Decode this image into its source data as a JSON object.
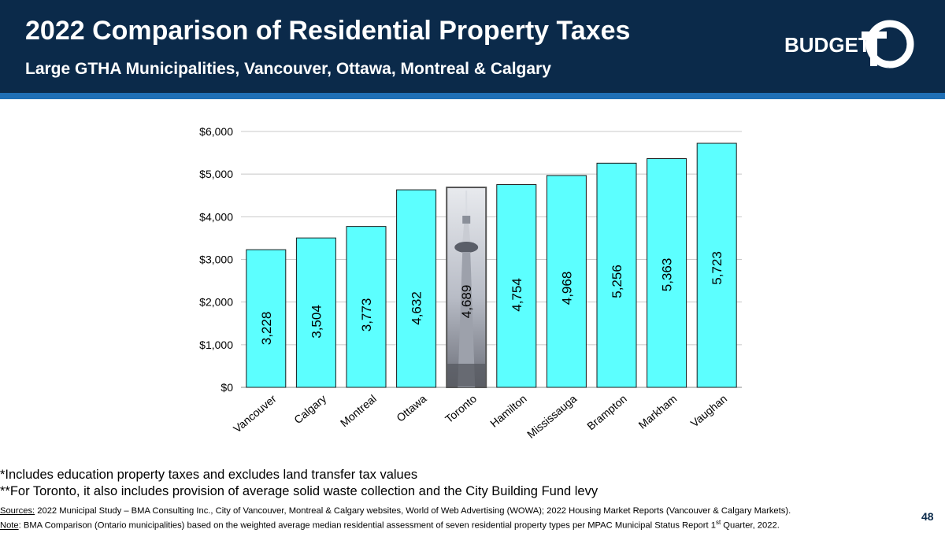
{
  "slide": {
    "title": "2022 Comparison of Residential Property Taxes",
    "subtitle": "Large GTHA Municipalities, Vancouver, Ottawa, Montreal & Calgary",
    "logo_text": "BUDGET",
    "logo_mark": "TO",
    "page_number": "48",
    "footnote1": "*Includes education property taxes and excludes land transfer tax values",
    "footnote2": "**For Toronto, it also includes provision of average solid waste collection and the City Building Fund levy",
    "sources_label": "Sources:",
    "sources_text": " 2022 Municipal Study – BMA Consulting Inc., City of Vancouver, Montreal & Calgary websites, World of Web Advertising (WOWA); 2022 Housing Market Reports (Vancouver & Calgary Markets).",
    "note_label": "Note",
    "note_text": ": BMA Comparison  (Ontario municipalities) based on the weighted average median residential assessment of seven residential property types per MPAC Municipal Status Report 1",
    "note_sup": "st",
    "note_end": " Quarter, 2022."
  },
  "colors": {
    "header_bg": "#0b2a4a",
    "stripe": "#1f6fb5",
    "bar_fill": "#5cffff",
    "bar_stroke": "#1a1a1a",
    "grid": "#c8c8c8"
  },
  "chart_data": {
    "type": "bar",
    "title": "",
    "xlabel": "",
    "ylabel": "",
    "ylim": [
      0,
      6000
    ],
    "yticks": [
      0,
      1000,
      2000,
      3000,
      4000,
      5000,
      6000
    ],
    "ytick_labels": [
      "$0",
      "$1,000",
      "$2,000",
      "$3,000",
      "$4,000",
      "$5,000",
      "$6,000"
    ],
    "categories": [
      "Vancouver",
      "Calgary",
      "Montreal",
      "Ottawa",
      "Toronto",
      "Hamilton",
      "Mississauga",
      "Brampton",
      "Markham",
      "Vaughan"
    ],
    "values": [
      3228,
      3504,
      3773,
      4632,
      4689,
      4754,
      4968,
      5256,
      5363,
      5723
    ],
    "value_labels": [
      "3,228",
      "3,504",
      "3,773",
      "4,632",
      "4,689",
      "4,754",
      "4,968",
      "5,256",
      "5,363",
      "5,723"
    ],
    "highlight_category": "Toronto",
    "grid": true,
    "legend": "none"
  }
}
